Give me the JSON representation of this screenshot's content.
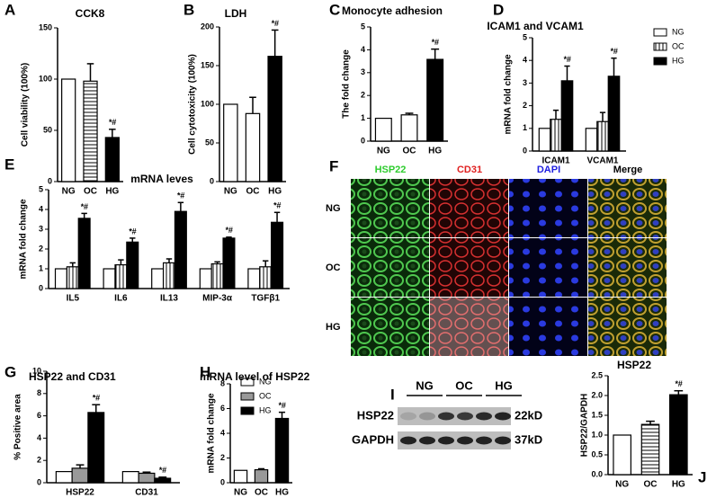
{
  "chart_data": [
    {
      "type": "bar",
      "panel": "A",
      "title": "CCK8",
      "ylabel": "Cell viability (100%)",
      "categories": [
        "NG",
        "OC",
        "HG"
      ],
      "values": [
        100,
        98,
        43
      ],
      "errors": [
        0,
        17,
        8
      ],
      "fills": [
        "white",
        "hstripe",
        "black"
      ],
      "annotations": [
        null,
        null,
        "*#"
      ],
      "ylim": [
        0,
        150
      ],
      "yticks": [
        0,
        50,
        100,
        150
      ]
    },
    {
      "type": "bar",
      "panel": "B",
      "title": "LDH",
      "ylabel": "Cell cytotoxicity (100%)",
      "categories": [
        "NG",
        "OC",
        "HG"
      ],
      "values": [
        100,
        88,
        162
      ],
      "errors": [
        0,
        21,
        34
      ],
      "fills": [
        "white",
        "white",
        "black"
      ],
      "annotations": [
        null,
        null,
        "*#"
      ],
      "ylim": [
        0,
        200
      ],
      "yticks": [
        0,
        50,
        100,
        150,
        200
      ]
    },
    {
      "type": "bar",
      "panel": "C",
      "title": "Monocyte adhesion",
      "ylabel": "The fold change",
      "categories": [
        "NG",
        "OC",
        "HG"
      ],
      "values": [
        1,
        1.15,
        3.58
      ],
      "errors": [
        0,
        0.07,
        0.45
      ],
      "fills": [
        "white",
        "white",
        "black"
      ],
      "annotations": [
        null,
        null,
        "*#"
      ],
      "ylim": [
        0,
        5
      ],
      "yticks": [
        0,
        1,
        2,
        3,
        4,
        5
      ]
    },
    {
      "type": "grouped_bar",
      "panel": "D",
      "title": "ICAM1 and VCAM1",
      "ylabel": "mRNA fold change",
      "categories": [
        "ICAM1",
        "VCAM1"
      ],
      "series": [
        {
          "name": "NG",
          "fill": "white",
          "values": [
            1,
            1
          ],
          "errors": [
            0,
            0
          ],
          "annotations": [
            null,
            null
          ]
        },
        {
          "name": "OC",
          "fill": "vstripe",
          "values": [
            1.4,
            1.3
          ],
          "errors": [
            0.4,
            0.4
          ],
          "annotations": [
            null,
            null
          ]
        },
        {
          "name": "HG",
          "fill": "black",
          "values": [
            3.1,
            3.3
          ],
          "errors": [
            0.65,
            0.8
          ],
          "annotations": [
            "*#",
            "*#"
          ]
        }
      ],
      "ylim": [
        0,
        5
      ],
      "yticks": [
        0,
        1,
        2,
        3,
        4,
        5
      ],
      "legend": true
    },
    {
      "type": "grouped_bar",
      "panel": "E",
      "title": "mRNA leves",
      "ylabel": "mRNA fold change",
      "categories": [
        "IL5",
        "IL6",
        "IL13",
        "MIP-3α",
        "TGFβ1"
      ],
      "series": [
        {
          "fill": "white",
          "values": [
            1,
            1,
            1,
            1,
            1
          ],
          "errors": [
            0,
            0,
            0,
            0,
            0
          ],
          "annotations": [
            null,
            null,
            null,
            null,
            null
          ]
        },
        {
          "fill": "vstripe",
          "values": [
            1.1,
            1.2,
            1.3,
            1.25,
            1.1
          ],
          "errors": [
            0.2,
            0.25,
            0.2,
            0.1,
            0.3
          ],
          "annotations": [
            null,
            null,
            null,
            null,
            null
          ]
        },
        {
          "fill": "black",
          "values": [
            3.55,
            2.35,
            3.9,
            2.55,
            3.35
          ],
          "errors": [
            0.25,
            0.2,
            0.45,
            0.05,
            0.5
          ],
          "annotations": [
            "*#",
            "*#",
            "*#",
            "*#",
            "*#"
          ]
        }
      ],
      "ylim": [
        0,
        5
      ],
      "yticks": [
        0,
        1,
        2,
        3,
        4,
        5
      ],
      "legend": false
    },
    {
      "type": "grouped_bar",
      "panel": "G",
      "title": "HSP22 and CD31",
      "ylabel": "% Positive area",
      "categories": [
        "HSP22",
        "CD31"
      ],
      "series": [
        {
          "name": "NG",
          "fill": "white",
          "values": [
            1,
            1
          ],
          "errors": [
            0,
            0
          ],
          "annotations": [
            null,
            null
          ]
        },
        {
          "name": "OC",
          "fill": "gray",
          "values": [
            1.3,
            0.85
          ],
          "errors": [
            0.3,
            0.1
          ],
          "annotations": [
            null,
            null
          ]
        },
        {
          "name": "HG",
          "fill": "black",
          "values": [
            6.3,
            0.4
          ],
          "errors": [
            0.7,
            0.1
          ],
          "annotations": [
            "*#",
            "*#"
          ]
        }
      ],
      "ylim": [
        0,
        10
      ],
      "yticks": [
        0,
        2,
        4,
        6,
        8,
        10
      ],
      "legend": true
    },
    {
      "type": "bar",
      "panel": "H",
      "title": "mRNA level of HSP22",
      "ylabel": "mRNA fold change",
      "categories": [
        "NG",
        "OC",
        "HG"
      ],
      "values": [
        1,
        1.05,
        5.2
      ],
      "errors": [
        0,
        0.08,
        0.5
      ],
      "fills": [
        "white",
        "gray",
        "black"
      ],
      "annotations": [
        null,
        null,
        "*#"
      ],
      "ylim": [
        0,
        8
      ],
      "yticks": [
        0,
        2,
        4,
        6,
        8
      ]
    },
    {
      "type": "bar",
      "panel": "J",
      "title": "HSP22",
      "ylabel": "HSP22/GAPDH",
      "categories": [
        "NG",
        "OC",
        "HG"
      ],
      "values": [
        1,
        1.27,
        2.02
      ],
      "errors": [
        0,
        0.08,
        0.1
      ],
      "fills": [
        "white",
        "hstripe",
        "black"
      ],
      "annotations": [
        null,
        null,
        "*#"
      ],
      "ylim": [
        0,
        2.5
      ],
      "yticks": [
        {
          "value": 0,
          "label": "0.0"
        },
        0.5,
        {
          "value": 1,
          "label": "1.0"
        },
        1.5,
        {
          "value": 2,
          "label": "2.0"
        },
        2.5
      ]
    }
  ],
  "microscopy": {
    "panel": "F",
    "columns": [
      "HSP22",
      "CD31",
      "DAPI",
      "Merge"
    ],
    "rows": [
      "NG",
      "OC",
      "HG"
    ]
  },
  "blot": {
    "panel": "I",
    "groups": [
      "NG",
      "OC",
      "HG"
    ],
    "rows": [
      {
        "name": "HSP22",
        "size": "22kD"
      },
      {
        "name": "GAPDH",
        "size": "37kD"
      }
    ]
  }
}
